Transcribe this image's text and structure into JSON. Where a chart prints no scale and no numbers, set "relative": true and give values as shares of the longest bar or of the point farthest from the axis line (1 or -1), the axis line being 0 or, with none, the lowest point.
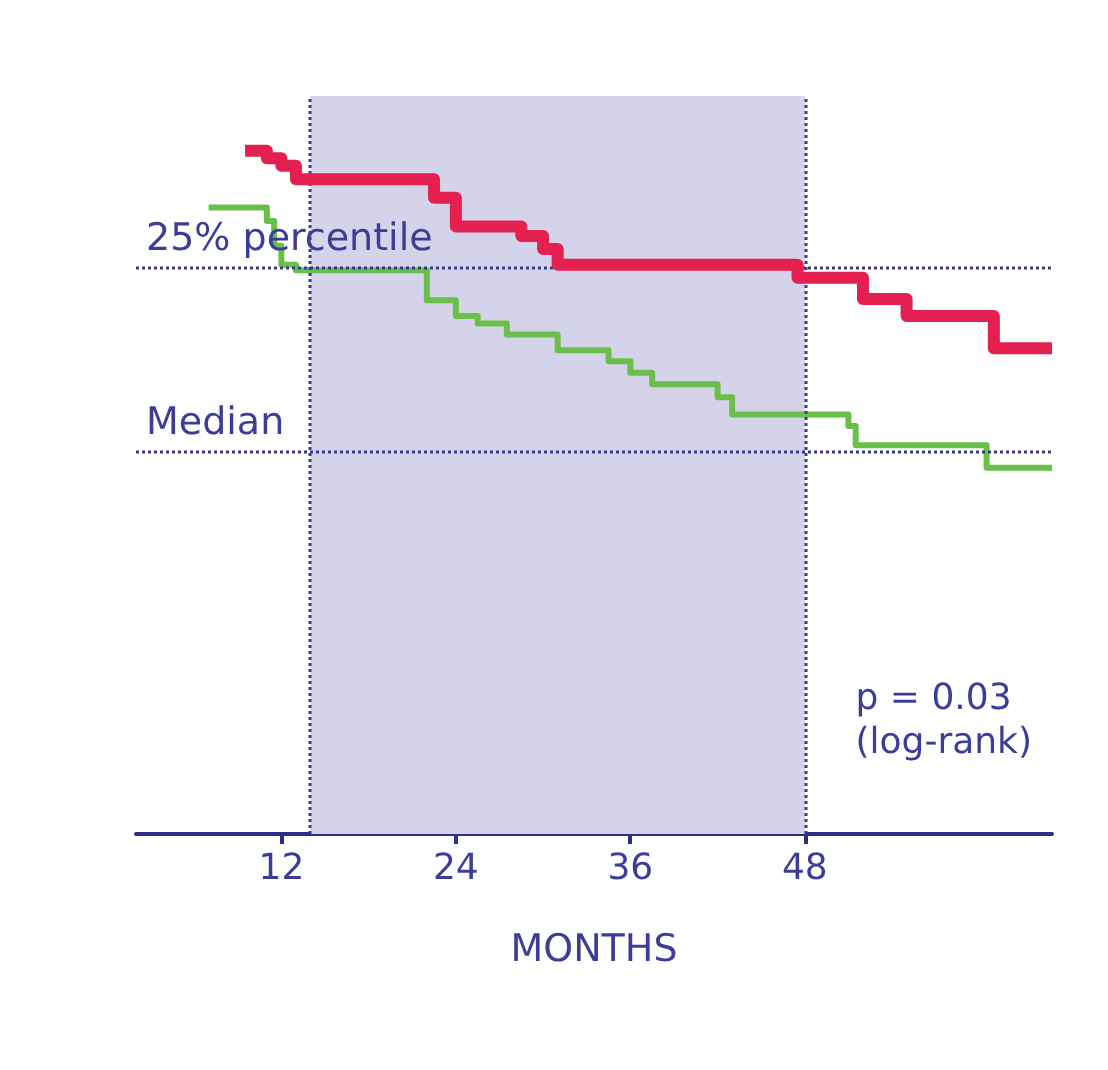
{
  "chart_data": {
    "type": "step",
    "relative": true,
    "xlabel": "MONTHS",
    "xlim": [
      2,
      65
    ],
    "xticks": [
      12,
      24,
      36,
      48
    ],
    "tick_labels": "x",
    "grid": false,
    "marker": "none",
    "line_style": "solid",
    "series": [
      {
        "color": "#e3204f",
        "x": [
          9.5,
          11,
          12,
          13,
          22.5,
          24,
          28.5,
          30,
          31,
          47.5,
          52,
          55,
          61,
          65
        ],
        "values": [
          1.0,
          0.989,
          0.978,
          0.958,
          0.931,
          0.889,
          0.875,
          0.856,
          0.833,
          0.814,
          0.783,
          0.758,
          0.711,
          0.711
        ]
      },
      {
        "color": "#6abf4b",
        "x": [
          7,
          11,
          11.5,
          12,
          13,
          22,
          24,
          25.5,
          27.5,
          31,
          34.5,
          36,
          37.5,
          42,
          43,
          51,
          51.5,
          60.5,
          65
        ],
        "values": [
          0.917,
          0.897,
          0.861,
          0.833,
          0.825,
          0.781,
          0.758,
          0.747,
          0.731,
          0.708,
          0.692,
          0.675,
          0.658,
          0.639,
          0.614,
          0.597,
          0.569,
          0.536,
          0.536
        ]
      }
    ],
    "ref_lines": [
      {
        "axis": "y",
        "value": 0.828,
        "label": "25% percentile",
        "color": "#3a3a8c",
        "line_style": "dotted"
      },
      {
        "axis": "y",
        "value": 0.561,
        "label": "Median",
        "color": "#3a3a8c",
        "line_style": "dotted"
      },
      {
        "axis": "x",
        "value": 14,
        "color": "#3a3a8c",
        "line_style": "dotted"
      },
      {
        "axis": "x",
        "value": 48,
        "color": "#3a3a8c",
        "line_style": "dotted"
      }
    ],
    "bands": [
      {
        "axis": "x",
        "from": 14,
        "to": 48,
        "color": "#d4d3ea"
      }
    ],
    "annotations": [
      "p = 0.03\n(log-rank)"
    ]
  }
}
